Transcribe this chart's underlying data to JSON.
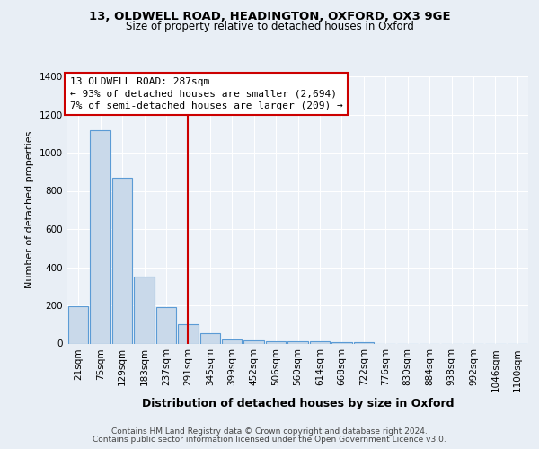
{
  "title1": "13, OLDWELL ROAD, HEADINGTON, OXFORD, OX3 9GE",
  "title2": "Size of property relative to detached houses in Oxford",
  "xlabel": "Distribution of detached houses by size in Oxford",
  "ylabel": "Number of detached properties",
  "bar_labels": [
    "21sqm",
    "75sqm",
    "129sqm",
    "183sqm",
    "237sqm",
    "291sqm",
    "345sqm",
    "399sqm",
    "452sqm",
    "506sqm",
    "560sqm",
    "614sqm",
    "668sqm",
    "722sqm",
    "776sqm",
    "830sqm",
    "884sqm",
    "938sqm",
    "992sqm",
    "1046sqm",
    "1100sqm"
  ],
  "bar_values": [
    193,
    1120,
    870,
    350,
    190,
    100,
    55,
    22,
    15,
    13,
    10,
    10,
    8,
    5,
    0,
    0,
    0,
    0,
    0,
    0,
    0
  ],
  "bar_color": "#c9d9ea",
  "bar_edge_color": "#5b9bd5",
  "vline_x": 5.0,
  "vline_color": "#cc0000",
  "annotation_line1": "13 OLDWELL ROAD: 287sqm",
  "annotation_line2": "← 93% of detached houses are smaller (2,694)",
  "annotation_line3": "7% of semi-detached houses are larger (209) →",
  "annotation_box_facecolor": "#ffffff",
  "annotation_box_edgecolor": "#cc0000",
  "ylim": [
    0,
    1400
  ],
  "yticks": [
    0,
    200,
    400,
    600,
    800,
    1000,
    1200,
    1400
  ],
  "footer1": "Contains HM Land Registry data © Crown copyright and database right 2024.",
  "footer2": "Contains public sector information licensed under the Open Government Licence v3.0.",
  "bg_color": "#e8eef5",
  "plot_bg_color": "#edf2f8",
  "grid_color": "#ffffff",
  "title1_fontsize": 9.5,
  "title2_fontsize": 8.5,
  "xlabel_fontsize": 9,
  "ylabel_fontsize": 8,
  "tick_fontsize": 7.5,
  "footer_fontsize": 6.5,
  "ann_fontsize": 8.0
}
